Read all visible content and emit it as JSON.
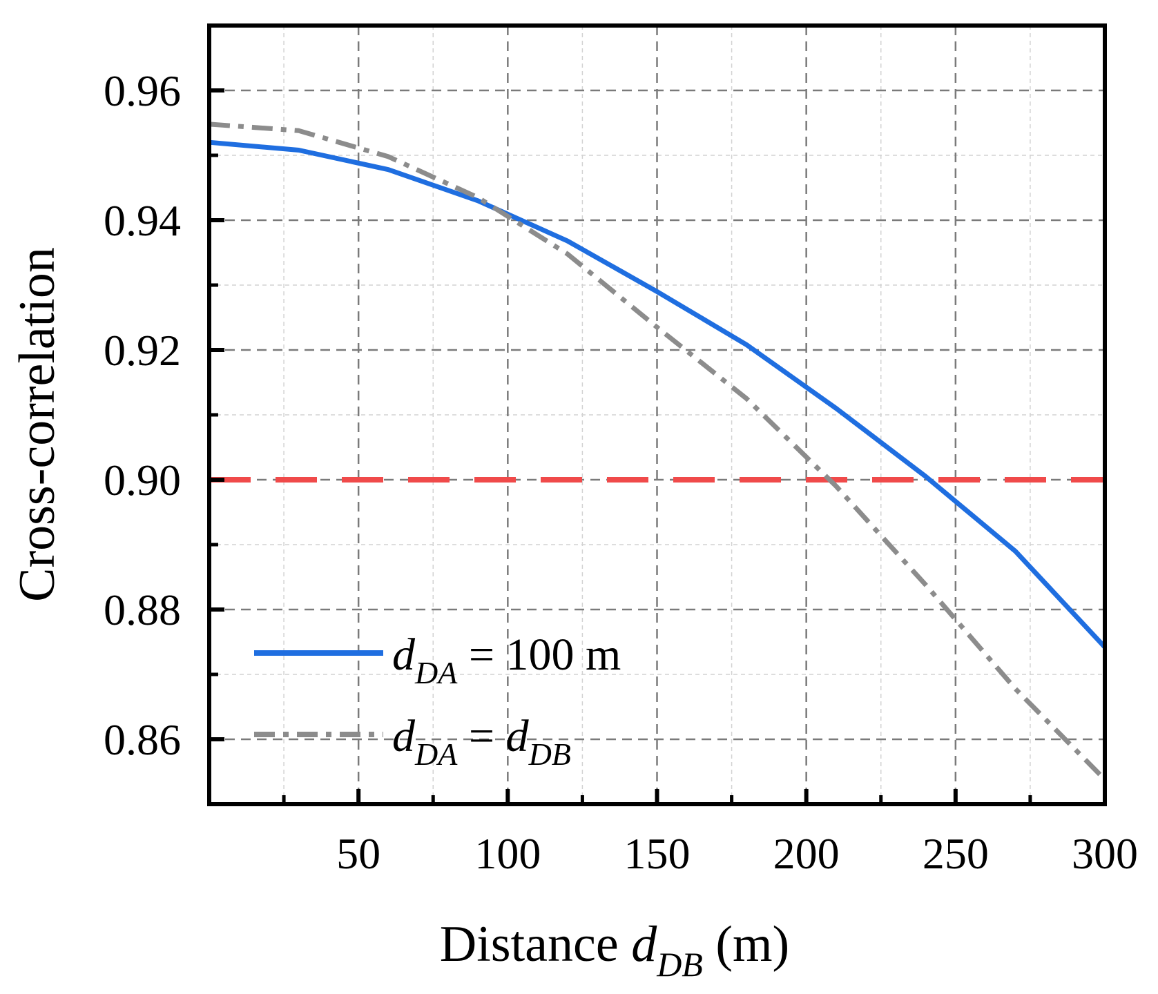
{
  "chart_data": {
    "type": "line",
    "title": "",
    "xlabel": {
      "prefix": "Distance ",
      "var": "d",
      "sub": "DB",
      "suffix": " (m)"
    },
    "ylabel": "Cross-correlation",
    "xlim": [
      0,
      300
    ],
    "ylim": [
      0.85,
      0.97
    ],
    "xticks": [
      50,
      100,
      150,
      200,
      250,
      300
    ],
    "xtick_labels": [
      "50",
      "100",
      "150",
      "200",
      "250",
      "300"
    ],
    "xminor": [
      25,
      75,
      125,
      175,
      225,
      275
    ],
    "yticks": [
      0.86,
      0.88,
      0.9,
      0.92,
      0.94,
      0.96
    ],
    "ytick_labels": [
      "0.86",
      "0.88",
      "0.90",
      "0.92",
      "0.94",
      "0.96"
    ],
    "yminor": [
      0.87,
      0.89,
      0.91,
      0.93,
      0.95
    ],
    "grid": true,
    "threshold": {
      "value": 0.9,
      "color": "#f04a4a"
    },
    "series": [
      {
        "name": "d_DA = 100 m",
        "legend": {
          "var": "d",
          "sub": "DA",
          "rest": " = 100 m"
        },
        "color": "#1f6ee0",
        "style": "solid",
        "x": [
          0,
          30,
          60,
          90,
          120,
          150,
          180,
          210,
          240,
          270,
          300
        ],
        "values": [
          0.952,
          0.9508,
          0.9478,
          0.943,
          0.9368,
          0.929,
          0.9208,
          0.911,
          0.9005,
          0.889,
          0.8742
        ]
      },
      {
        "name": "d_DA = d_DB",
        "legend": {
          "var": "d",
          "sub": "DA",
          "mid": " = ",
          "var2": "d",
          "sub2": "DB"
        },
        "color": "#8c8c8c",
        "style": "dashdot",
        "x": [
          0,
          30,
          60,
          90,
          120,
          150,
          180,
          210,
          240,
          270,
          300
        ],
        "values": [
          0.9548,
          0.9538,
          0.9498,
          0.9435,
          0.9348,
          0.9235,
          0.9125,
          0.899,
          0.8838,
          0.8678,
          0.8538
        ]
      }
    ]
  }
}
